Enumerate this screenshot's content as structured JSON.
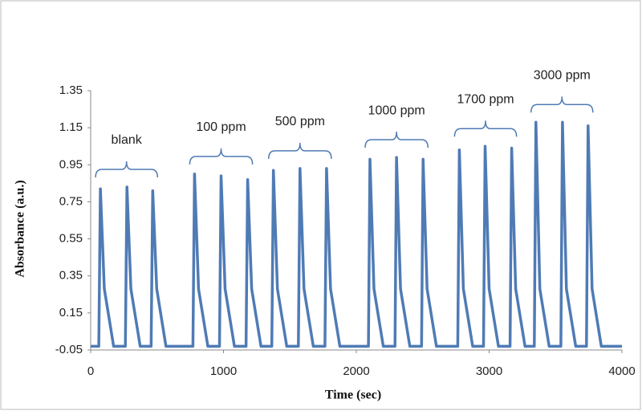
{
  "chart_data": {
    "type": "line",
    "x_label": "Time (sec)",
    "y_label": "Absorbance (a.u.)",
    "xlim": [
      0,
      4000
    ],
    "xticks": [
      0,
      1000,
      2000,
      3000,
      4000
    ],
    "ylim": [
      -0.05,
      1.35
    ],
    "yticks": [
      -0.05,
      0.15,
      0.35,
      0.55,
      0.75,
      0.95,
      1.15,
      1.35
    ],
    "annotations": [
      "blank",
      "100 ppm",
      "500 ppm",
      "1000 ppm",
      "1700 ppm",
      "3000 ppm"
    ],
    "series": [
      {
        "color": "#4f7bb5",
        "x": [
          0,
          61,
          73,
          103,
          173,
          261,
          273,
          303,
          373,
          455,
          467,
          497,
          567,
          770,
          782,
          812,
          882,
          970,
          982,
          1012,
          1082,
          1170,
          1182,
          1212,
          1282,
          1364,
          1376,
          1406,
          1476,
          1564,
          1576,
          1606,
          1676,
          1764,
          1776,
          1806,
          1876,
          2091,
          2103,
          2133,
          2203,
          2291,
          2303,
          2333,
          2403,
          2491,
          2503,
          2533,
          2603,
          2764,
          2776,
          2806,
          2876,
          2958,
          2970,
          3000,
          3070,
          3158,
          3170,
          3200,
          3270,
          3340,
          3352,
          3382,
          3452,
          3540,
          3552,
          3582,
          3652,
          3733,
          3745,
          3775,
          3845,
          4000
        ],
        "values": [
          -0.03,
          -0.03,
          0.82,
          0.28,
          -0.03,
          -0.03,
          0.83,
          0.28,
          -0.03,
          -0.03,
          0.81,
          0.28,
          -0.03,
          -0.03,
          0.9,
          0.28,
          -0.03,
          -0.03,
          0.89,
          0.28,
          -0.03,
          -0.03,
          0.87,
          0.28,
          -0.03,
          -0.03,
          0.92,
          0.28,
          -0.03,
          -0.03,
          0.93,
          0.28,
          -0.03,
          -0.03,
          0.93,
          0.28,
          -0.03,
          -0.03,
          0.98,
          0.28,
          -0.03,
          -0.03,
          0.99,
          0.28,
          -0.03,
          -0.03,
          0.98,
          0.28,
          -0.03,
          -0.03,
          1.03,
          0.28,
          -0.03,
          -0.03,
          1.05,
          0.28,
          -0.03,
          -0.03,
          1.04,
          0.28,
          -0.03,
          -0.03,
          1.18,
          0.28,
          -0.03,
          -0.03,
          1.18,
          0.28,
          -0.03,
          -0.03,
          1.16,
          0.28,
          -0.03,
          -0.03
        ]
      }
    ]
  }
}
